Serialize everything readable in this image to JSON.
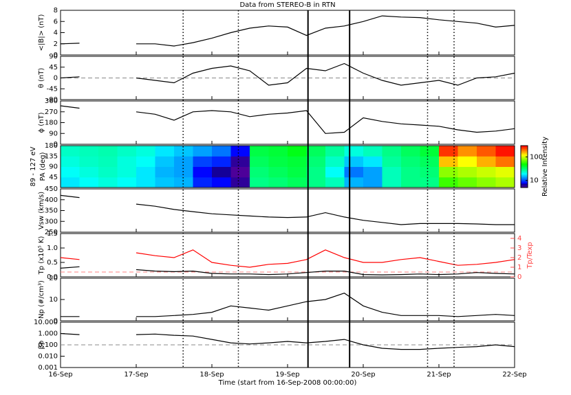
{
  "chart_data": [
    {
      "type": "line",
      "title": "Data from STEREO-B in RTN",
      "ylabel": "<|B|> (nT)",
      "x": [
        0,
        0.25,
        0.5,
        0.75,
        1,
        1.25,
        1.5,
        1.75,
        2,
        2.25,
        2.5,
        2.75,
        3,
        3.25,
        3.5,
        3.75,
        4,
        4.25,
        4.5,
        4.75,
        5,
        5.25,
        5.5,
        5.75,
        6
      ],
      "series": [
        {
          "color": "#000000",
          "values": [
            2.0,
            2.1,
            null,
            null,
            2.0,
            2.0,
            1.6,
            2.2,
            3.0,
            4.0,
            4.8,
            5.2,
            5.0,
            3.5,
            4.8,
            5.2,
            6.0,
            7.0,
            6.8,
            6.7,
            6.3,
            6.0,
            5.7,
            5.0,
            5.3
          ]
        }
      ],
      "ylim": [
        0,
        8
      ],
      "yticks": [
        0,
        2,
        4,
        6,
        8
      ],
      "vlines": [
        {
          "x": 1.62,
          "style": "dotted"
        },
        {
          "x": 2.35,
          "style": "dotted"
        },
        {
          "x": 3.27,
          "style": "solid"
        },
        {
          "x": 3.82,
          "style": "solid"
        },
        {
          "x": 4.85,
          "style": "dotted"
        },
        {
          "x": 5.2,
          "style": "dotted"
        }
      ]
    },
    {
      "type": "line",
      "ylabel": "θ (nT)",
      "x": [
        0,
        0.25,
        0.5,
        0.75,
        1,
        1.25,
        1.5,
        1.75,
        2,
        2.25,
        2.5,
        2.75,
        3,
        3.25,
        3.5,
        3.75,
        4,
        4.25,
        4.5,
        4.75,
        5,
        5.25,
        5.5,
        5.75,
        6
      ],
      "series": [
        {
          "color": "#000000",
          "values": [
            0,
            5,
            null,
            null,
            0,
            -10,
            -20,
            20,
            40,
            50,
            30,
            -30,
            -20,
            40,
            30,
            60,
            20,
            -10,
            -30,
            -20,
            -10,
            -30,
            0,
            5,
            20
          ]
        }
      ],
      "ylim": [
        -90,
        90
      ],
      "yticks": [
        -90,
        -45,
        0,
        45,
        90
      ],
      "hline": {
        "value": 0,
        "style": "dashed"
      }
    },
    {
      "type": "line",
      "ylabel": "ϕ (nT)",
      "x": [
        0,
        0.25,
        0.5,
        0.75,
        1,
        1.25,
        1.5,
        1.75,
        2,
        2.25,
        2.5,
        2.75,
        3,
        3.25,
        3.5,
        3.75,
        4,
        4.25,
        4.5,
        4.75,
        5,
        5.25,
        5.5,
        5.75,
        6
      ],
      "series": [
        {
          "color": "#000000",
          "values": [
            320,
            300,
            null,
            null,
            270,
            250,
            200,
            270,
            280,
            270,
            230,
            250,
            260,
            280,
            90,
            100,
            220,
            190,
            170,
            160,
            150,
            120,
            100,
            110,
            130
          ]
        }
      ],
      "ylim": [
        0,
        360
      ],
      "yticks": [
        0,
        90,
        180,
        270,
        360
      ]
    },
    {
      "type": "heatmap",
      "ylabel": "PA (deg)",
      "energy_label": "89 - 127 eV",
      "x_edges": [
        0,
        0.25,
        0.5,
        0.75,
        1,
        1.25,
        1.5,
        1.75,
        2,
        2.25,
        2.5,
        2.75,
        3,
        3.25,
        3.5,
        3.75,
        4,
        4.25,
        4.5,
        4.75,
        5,
        5.25,
        5.5,
        5.75,
        6
      ],
      "y_edges": [
        0,
        45,
        90,
        135,
        180
      ],
      "values": [
        [
          18,
          20,
          22,
          20,
          18,
          16,
          15,
          9,
          8,
          6,
          30,
          32,
          35,
          30,
          25,
          15,
          14,
          25,
          30,
          30,
          60,
          70,
          80,
          90
        ],
        [
          20,
          22,
          24,
          22,
          18,
          15,
          14,
          8,
          7,
          5,
          32,
          35,
          38,
          30,
          20,
          12,
          14,
          25,
          30,
          32,
          80,
          90,
          100,
          110
        ],
        [
          22,
          24,
          25,
          22,
          20,
          16,
          14,
          10,
          9,
          6,
          35,
          38,
          40,
          32,
          24,
          16,
          18,
          28,
          32,
          35,
          150,
          120,
          160,
          200
        ],
        [
          24,
          25,
          26,
          24,
          22,
          18,
          16,
          14,
          12,
          8,
          38,
          40,
          45,
          35,
          28,
          22,
          25,
          30,
          35,
          40,
          250,
          180,
          220,
          280
        ]
      ],
      "ylim": [
        0,
        180
      ],
      "yticks": [
        45,
        90,
        135,
        180
      ],
      "colorbar": {
        "label": "Relative Intensity",
        "lim": [
          5,
          300
        ],
        "ticks": [
          10,
          100
        ]
      }
    },
    {
      "type": "line",
      "ylabel": "Vsw (km/s)",
      "x": [
        0,
        0.25,
        0.5,
        0.75,
        1,
        1.25,
        1.5,
        1.75,
        2,
        2.25,
        2.5,
        2.75,
        3,
        3.25,
        3.5,
        3.75,
        4,
        4.25,
        4.5,
        4.75,
        5,
        5.25,
        5.5,
        5.75,
        6
      ],
      "series": [
        {
          "color": "#000000",
          "values": [
            420,
            410,
            null,
            null,
            380,
            370,
            355,
            345,
            335,
            330,
            325,
            320,
            318,
            320,
            340,
            320,
            305,
            295,
            285,
            290,
            290,
            290,
            288,
            285,
            285
          ]
        }
      ],
      "ylim": [
        250,
        450
      ],
      "yticks": [
        250,
        300,
        350,
        400,
        450
      ]
    },
    {
      "type": "line",
      "ylabel": "Tp (x10⁵ K)",
      "y2label": "Tp/Texp",
      "x": [
        0,
        0.25,
        0.5,
        0.75,
        1,
        1.25,
        1.5,
        1.75,
        2,
        2.25,
        2.5,
        2.75,
        3,
        3.25,
        3.5,
        3.75,
        4,
        4.25,
        4.5,
        4.75,
        5,
        5.25,
        5.5,
        5.75,
        6
      ],
      "series": [
        {
          "color": "#000000",
          "values": [
            0.3,
            0.35,
            null,
            null,
            0.25,
            0.2,
            0.18,
            0.2,
            0.12,
            0.1,
            0.1,
            0.08,
            0.1,
            0.15,
            0.2,
            0.2,
            0.08,
            0.07,
            0.08,
            0.1,
            0.08,
            0.1,
            0.15,
            0.12,
            0.1
          ]
        },
        {
          "color": "#ff0000",
          "axis": "y2",
          "values": [
            2,
            1.8,
            null,
            null,
            2.5,
            2.2,
            2.0,
            2.8,
            1.5,
            1.2,
            1.0,
            1.3,
            1.4,
            1.8,
            2.8,
            2.0,
            1.5,
            1.5,
            1.8,
            2.0,
            1.6,
            1.2,
            1.3,
            1.5,
            1.8
          ]
        }
      ],
      "ylim": [
        0,
        1.5
      ],
      "yticks": [
        {
          "value": 0,
          "label": "0.0"
        },
        0.5,
        {
          "value": 1,
          "label": "1.0"
        },
        1.5
      ],
      "y2lim": [
        0,
        4.5
      ],
      "y2ticks": [
        0,
        1,
        2,
        3,
        4
      ],
      "hline": {
        "value": 0.5,
        "style": "dashed",
        "axis": "y2",
        "color": "#ff8080"
      }
    },
    {
      "type": "line",
      "ylabel": "Np (#/cm³)",
      "x": [
        0,
        0.25,
        0.5,
        0.75,
        1,
        1.25,
        1.5,
        1.75,
        2,
        2.25,
        2.5,
        2.75,
        3,
        3.25,
        3.5,
        3.75,
        4,
        4.25,
        4.5,
        4.75,
        5,
        5.25,
        5.5,
        5.75,
        6
      ],
      "series": [
        {
          "color": "#000000",
          "values": [
            2,
            2,
            null,
            null,
            2,
            2,
            2.5,
            3,
            4,
            7,
            6,
            5,
            7,
            9,
            10,
            13,
            7,
            4,
            2.5,
            2.5,
            2.5,
            2,
            2.5,
            3,
            2.5
          ]
        }
      ],
      "ylim": [
        0,
        20
      ],
      "yticks": [
        0,
        10,
        20
      ]
    },
    {
      "type": "line",
      "ylabel": "βp",
      "log": true,
      "xlabel": "Time (start from 16-Sep-2008 00:00:00)",
      "x": [
        0,
        0.25,
        0.5,
        0.75,
        1,
        1.25,
        1.5,
        1.75,
        2,
        2.25,
        2.5,
        2.75,
        3,
        3.25,
        3.5,
        3.75,
        4,
        4.25,
        4.5,
        4.75,
        5,
        5.25,
        5.5,
        5.75,
        6
      ],
      "series": [
        {
          "color": "#000000",
          "values": [
            1,
            0.8,
            null,
            null,
            0.8,
            0.9,
            0.7,
            0.6,
            0.3,
            0.15,
            0.12,
            0.15,
            0.2,
            0.15,
            0.2,
            0.3,
            0.1,
            0.05,
            0.04,
            0.04,
            0.05,
            0.06,
            0.07,
            0.1,
            0.07
          ]
        }
      ],
      "ylim": [
        0.001,
        10
      ],
      "yticks": [
        {
          "value": 0.001,
          "label": "0.001"
        },
        {
          "value": 0.01,
          "label": "0.010"
        },
        {
          "value": 0.1,
          "label": "0.100"
        },
        {
          "value": 1,
          "label": "1.000"
        },
        {
          "value": 10,
          "label": "10.000"
        }
      ],
      "hline": {
        "value": 0.1,
        "style": "dashed"
      },
      "xlim": [
        0,
        6
      ],
      "xticks": [
        {
          "value": 0,
          "label": "16-Sep"
        },
        {
          "value": 1,
          "label": "17-Sep"
        },
        {
          "value": 2,
          "label": "18-Sep"
        },
        {
          "value": 3,
          "label": "19-Sep"
        },
        {
          "value": 4,
          "label": "20-Sep"
        },
        {
          "value": 5,
          "label": "21-Sep"
        },
        {
          "value": 6,
          "label": "22-Sep"
        }
      ]
    }
  ]
}
